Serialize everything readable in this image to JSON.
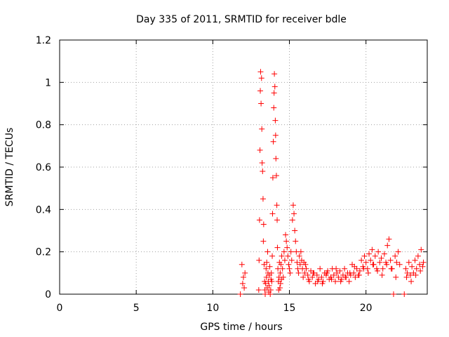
{
  "chart_data": {
    "type": "scatter",
    "title": "Day 335 of 2011, SRMTID for receiver bdle",
    "xlabel": "GPS time / hours",
    "ylabel": "SRMTID / TECUs",
    "xlim": [
      0,
      24
    ],
    "ylim": [
      0,
      1.2
    ],
    "xticks": [
      0,
      5,
      10,
      15,
      20
    ],
    "yticks": [
      0,
      0.2,
      0.4,
      0.6,
      0.8,
      1,
      1.2
    ],
    "xtick_labels": [
      "0",
      "5",
      "10",
      "15",
      "20"
    ],
    "ytick_labels": [
      "0",
      "0.2",
      "0.4",
      "0.6",
      "0.8",
      "1",
      "1.2"
    ],
    "grid": true,
    "marker": "+",
    "color": "#ff0000",
    "series": [
      {
        "name": "SRMTID",
        "x": [
          11.8,
          11.9,
          11.95,
          12.0,
          12.05,
          12.1,
          13.0,
          13.02,
          13.05,
          13.08,
          13.1,
          13.12,
          13.15,
          13.18,
          13.2,
          13.22,
          13.25,
          13.28,
          13.3,
          13.32,
          13.35,
          13.38,
          13.4,
          13.42,
          13.45,
          13.48,
          13.5,
          13.52,
          13.55,
          13.58,
          13.6,
          13.62,
          13.65,
          13.68,
          13.7,
          13.72,
          13.75,
          13.78,
          13.8,
          13.82,
          13.85,
          13.88,
          13.9,
          13.92,
          13.95,
          13.98,
          14.0,
          14.02,
          14.05,
          14.08,
          14.1,
          14.12,
          14.15,
          14.18,
          14.2,
          14.22,
          14.25,
          14.28,
          14.3,
          14.32,
          14.35,
          14.38,
          14.4,
          14.42,
          14.45,
          14.48,
          14.5,
          14.55,
          14.6,
          14.65,
          14.7,
          14.75,
          14.8,
          14.85,
          14.9,
          14.95,
          15.0,
          15.05,
          15.1,
          15.15,
          15.2,
          15.25,
          15.3,
          15.35,
          15.4,
          15.45,
          15.5,
          15.55,
          15.6,
          15.65,
          15.7,
          15.75,
          15.8,
          15.85,
          15.9,
          15.95,
          16.0,
          16.1,
          16.2,
          16.3,
          16.4,
          16.5,
          16.6,
          16.7,
          16.8,
          16.9,
          17.0,
          17.1,
          17.2,
          17.3,
          17.4,
          17.5,
          17.6,
          17.7,
          17.8,
          17.9,
          18.0,
          18.1,
          18.2,
          18.3,
          18.4,
          18.5,
          18.6,
          18.7,
          18.8,
          18.9,
          19.0,
          19.1,
          19.2,
          19.3,
          19.4,
          19.5,
          19.6,
          19.7,
          19.8,
          19.9,
          20.0,
          20.1,
          20.2,
          20.3,
          20.4,
          20.5,
          20.6,
          20.7,
          20.8,
          20.9,
          21.0,
          21.1,
          21.2,
          21.3,
          21.4,
          21.5,
          21.6,
          21.7,
          21.8,
          21.9,
          22.0,
          22.1,
          22.2,
          22.5,
          22.6,
          22.7,
          22.8,
          22.9,
          23.0,
          23.1,
          23.2,
          23.3,
          23.4,
          23.5,
          23.6,
          23.7,
          23.75,
          16.05,
          16.25,
          16.55,
          16.85,
          17.15,
          17.45,
          17.75,
          18.05,
          18.35,
          18.65,
          18.95,
          19.25,
          19.55,
          19.85,
          20.15,
          20.45,
          20.75,
          21.05,
          21.35,
          21.65,
          21.95,
          22.65,
          22.95,
          23.25,
          23.55
        ],
        "y": [
          0.0,
          0.14,
          0.05,
          0.08,
          0.03,
          0.1,
          0.02,
          0.16,
          0.35,
          0.68,
          0.96,
          1.05,
          0.9,
          1.02,
          0.78,
          0.62,
          0.58,
          0.45,
          0.25,
          0.33,
          0.14,
          0.06,
          0.02,
          0.0,
          0.05,
          0.12,
          0.08,
          0.15,
          0.03,
          0.2,
          0.1,
          0.06,
          0.01,
          0.04,
          0.09,
          0.13,
          0.0,
          0.02,
          0.07,
          0.1,
          0.06,
          0.18,
          0.38,
          0.55,
          0.72,
          0.88,
          0.95,
          1.04,
          0.98,
          0.82,
          0.75,
          0.64,
          0.56,
          0.42,
          0.35,
          0.22,
          0.12,
          0.06,
          0.02,
          0.08,
          0.15,
          0.03,
          0.1,
          0.05,
          0.14,
          0.07,
          0.18,
          0.12,
          0.08,
          0.2,
          0.16,
          0.28,
          0.25,
          0.22,
          0.18,
          0.14,
          0.12,
          0.1,
          0.2,
          0.16,
          0.35,
          0.42,
          0.38,
          0.3,
          0.25,
          0.2,
          0.15,
          0.12,
          0.1,
          0.18,
          0.14,
          0.2,
          0.16,
          0.12,
          0.08,
          0.15,
          0.1,
          0.12,
          0.09,
          0.06,
          0.11,
          0.08,
          0.1,
          0.05,
          0.09,
          0.07,
          0.12,
          0.08,
          0.06,
          0.1,
          0.09,
          0.11,
          0.07,
          0.08,
          0.12,
          0.09,
          0.06,
          0.1,
          0.08,
          0.11,
          0.07,
          0.09,
          0.12,
          0.08,
          0.1,
          0.06,
          0.09,
          0.14,
          0.1,
          0.08,
          0.12,
          0.09,
          0.11,
          0.16,
          0.13,
          0.18,
          0.15,
          0.12,
          0.19,
          0.16,
          0.21,
          0.14,
          0.18,
          0.12,
          0.2,
          0.15,
          0.17,
          0.12,
          0.19,
          0.15,
          0.23,
          0.26,
          0.16,
          0.12,
          0.0,
          0.18,
          0.15,
          0.2,
          0.14,
          0.0,
          0.12,
          0.1,
          0.15,
          0.09,
          0.13,
          0.1,
          0.16,
          0.12,
          0.18,
          0.14,
          0.21,
          0.13,
          0.15,
          0.14,
          0.07,
          0.1,
          0.06,
          0.05,
          0.1,
          0.07,
          0.12,
          0.06,
          0.08,
          0.1,
          0.13,
          0.09,
          0.12,
          0.1,
          0.14,
          0.11,
          0.09,
          0.14,
          0.12,
          0.08,
          0.08,
          0.06,
          0.09,
          0.11
        ]
      }
    ]
  }
}
